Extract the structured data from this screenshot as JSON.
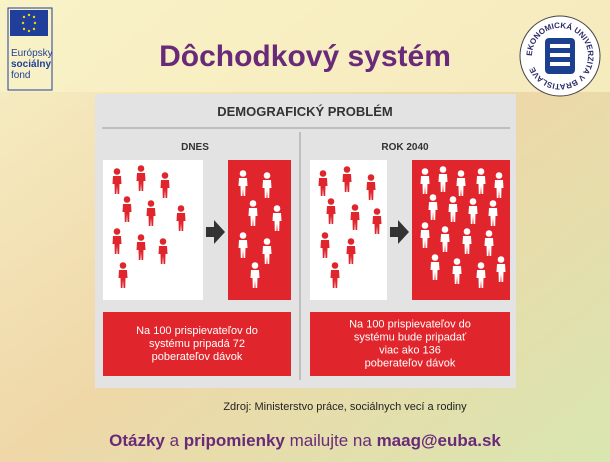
{
  "logo": {
    "lines": [
      "Európsky",
      "sociálny",
      "fond"
    ]
  },
  "header": {
    "title": "Dôchodkový systém"
  },
  "seal": {
    "text": "EKONOMICKÁ UNIVERZITA V BRATISLAVE"
  },
  "infographic": {
    "title": "DEMOGRAFICKÝ PROBLÉM",
    "left": {
      "label": "DNES",
      "caption": [
        "Na 100 prispievateľov do",
        "systému pripadá 72",
        "poberateľov dávok"
      ]
    },
    "right": {
      "label": "ROK 2040",
      "caption": [
        "Na 100 prispievateľov do",
        "systému bude pripadať",
        "viac ako 136",
        "poberateľov dávok"
      ]
    }
  },
  "source": "Zdroj: Ministerstvo práce, sociálnych vecí a rodiny",
  "footer": {
    "parts": [
      "Otázky",
      " a ",
      "pripomienky",
      " mailujte na ",
      "maag@euba.sk"
    ]
  }
}
